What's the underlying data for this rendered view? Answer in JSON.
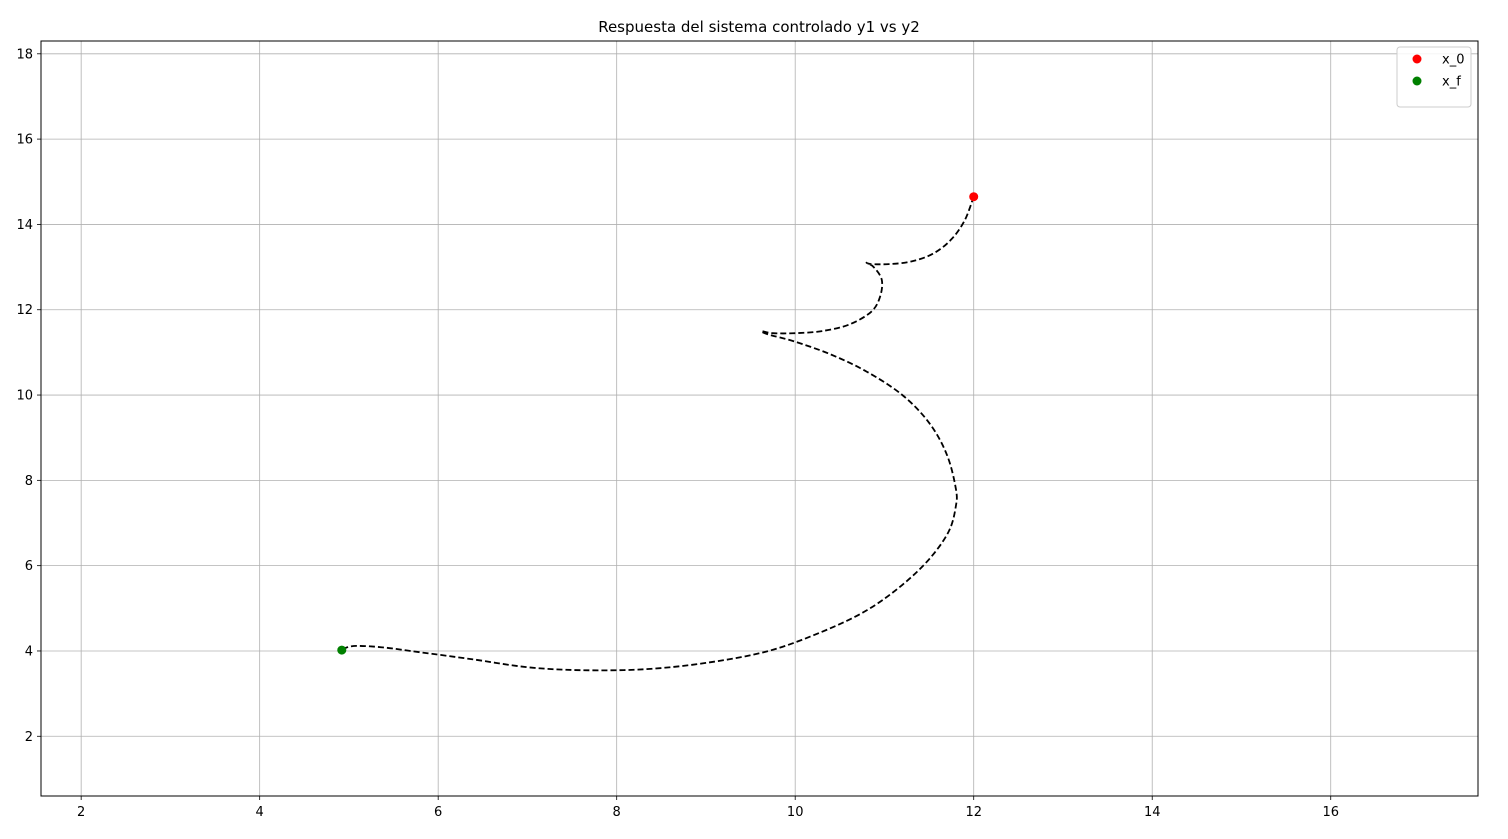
{
  "chart_data": {
    "type": "line",
    "title": "Respuesta del sistema controlado y1 vs y2",
    "xlabel": "",
    "ylabel": "",
    "xlim": [
      1.55,
      17.65
    ],
    "ylim": [
      0.6,
      18.3
    ],
    "xticks": [
      2,
      4,
      6,
      8,
      10,
      12,
      14,
      16
    ],
    "yticks": [
      2,
      4,
      6,
      8,
      10,
      12,
      14,
      16,
      18
    ],
    "grid": true,
    "legend_position": "top-right",
    "series": [
      {
        "style": "dashed",
        "color": "#000000",
        "x": [
          12.0,
          11.9,
          11.75,
          11.55,
          11.3,
          11.05,
          10.85,
          10.8,
          10.88,
          10.97,
          10.95,
          10.85,
          10.6,
          10.3,
          10.0,
          9.75,
          9.62,
          9.7,
          10.0,
          10.4,
          10.8,
          11.2,
          11.5,
          11.7,
          11.8,
          11.8,
          11.72,
          11.5,
          11.2,
          10.8,
          10.3,
          9.7,
          9.0,
          8.3,
          7.6,
          7.0,
          6.4,
          5.8,
          5.4,
          5.1,
          4.97,
          4.92
        ],
        "y": [
          14.65,
          14.1,
          13.65,
          13.32,
          13.13,
          13.07,
          13.07,
          13.1,
          13.0,
          12.7,
          12.3,
          11.95,
          11.65,
          11.5,
          11.45,
          11.45,
          11.5,
          11.42,
          11.25,
          10.95,
          10.55,
          10.0,
          9.35,
          8.6,
          7.8,
          7.4,
          6.8,
          6.15,
          5.55,
          4.95,
          4.45,
          4.0,
          3.72,
          3.57,
          3.55,
          3.62,
          3.8,
          3.97,
          4.08,
          4.12,
          4.08,
          4.02
        ]
      }
    ],
    "points": [
      {
        "name": "x_0",
        "x": 12.0,
        "y": 14.65,
        "color": "#ff0000"
      },
      {
        "name": "x_f",
        "x": 4.92,
        "y": 4.02,
        "color": "#008000"
      }
    ]
  }
}
